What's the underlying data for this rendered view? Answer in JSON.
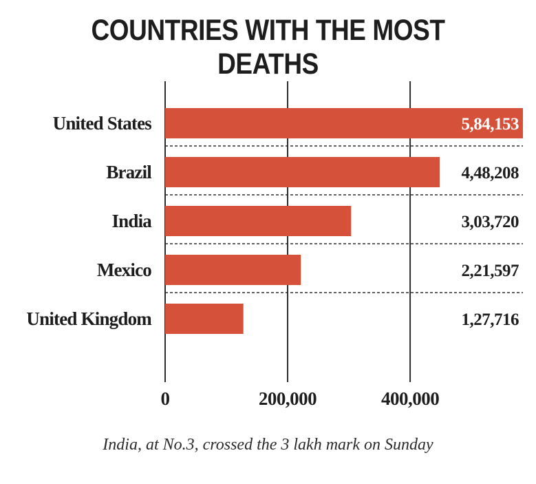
{
  "chart_data": {
    "type": "bar",
    "orientation": "horizontal",
    "title": "COUNTRIES WITH THE MOST DEATHS",
    "categories": [
      "United States",
      "Brazil",
      "India",
      "Mexico",
      "United Kingdom"
    ],
    "values": [
      584153,
      448208,
      303720,
      221597,
      127716
    ],
    "value_labels": [
      "5,84,153",
      "4,48,208",
      "3,03,720",
      "2,21,597",
      "1,27,716"
    ],
    "x_ticks": [
      0,
      200000,
      400000
    ],
    "x_tick_labels": [
      "0",
      "200,000",
      "400,000"
    ],
    "xlim": [
      0,
      584153
    ],
    "grid": "vertical lines at ticks; dashed row separators",
    "caption": "India, at No.3, crossed the 3 lakh mark on Sunday",
    "colors": {
      "bar": "#d5513a",
      "grid": "#2b2b2b",
      "label_on_bar": "#ffffff",
      "label": "#1d1d1d"
    }
  }
}
